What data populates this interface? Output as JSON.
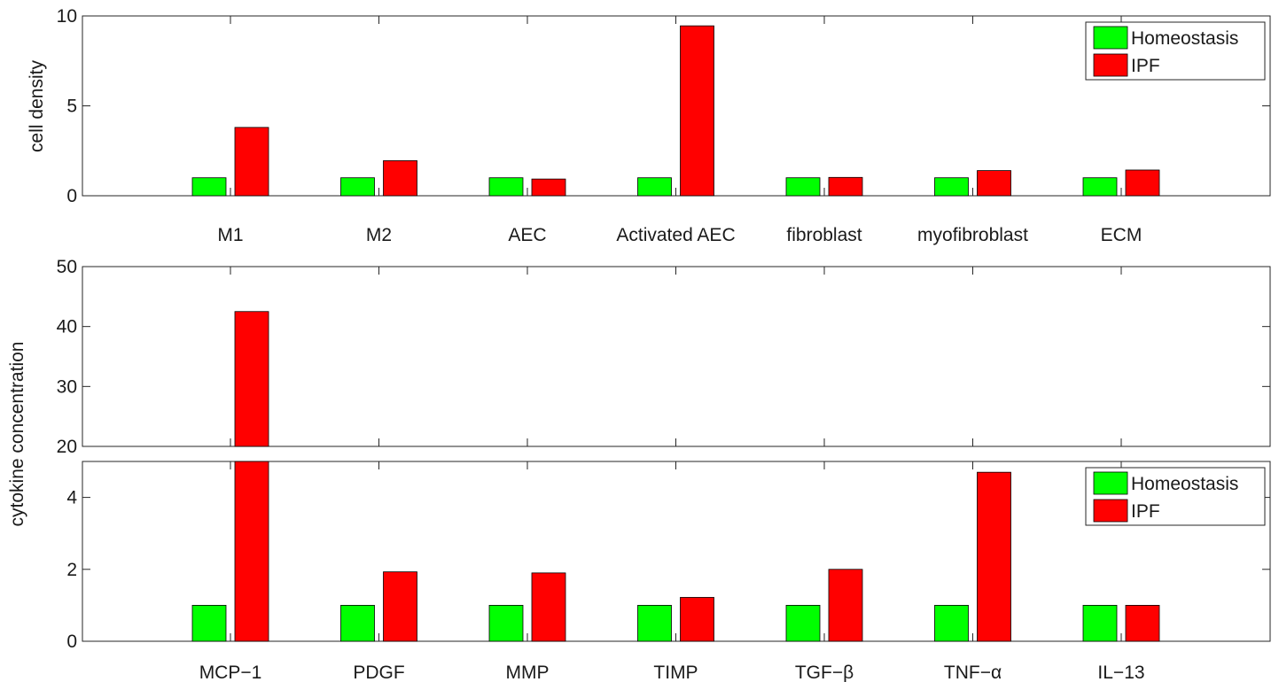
{
  "chart_data": [
    {
      "type": "bar",
      "title": "",
      "xlabel": "",
      "ylabel": "cell density",
      "ylim": [
        0,
        10
      ],
      "yticks": [
        0,
        5,
        10
      ],
      "grid": false,
      "legend_position": "top-right",
      "categories": [
        "M1",
        "M2",
        "AEC",
        "Activated AEC",
        "fibroblast",
        "myofibroblast",
        "ECM"
      ],
      "series": [
        {
          "name": "Homeostasis",
          "color": "#00ff00",
          "values": [
            1,
            1,
            1,
            1,
            1,
            1,
            1
          ]
        },
        {
          "name": "IPF",
          "color": "#ff0000",
          "values": [
            3.8,
            1.95,
            0.93,
            9.45,
            1.02,
            1.4,
            1.43
          ]
        }
      ]
    },
    {
      "type": "bar",
      "title": "",
      "xlabel": "",
      "ylabel": "cytokine concentration",
      "ylim": [
        0,
        50
      ],
      "axis_break": [
        5,
        20
      ],
      "yticks_lower": [
        0,
        2,
        4
      ],
      "yticks_upper": [
        20,
        30,
        40,
        50
      ],
      "grid": false,
      "legend_position": "top-right",
      "categories": [
        "MCP−1",
        "PDGF",
        "MMP",
        "TIMP",
        "TGF−β",
        "TNF−α",
        "IL−13"
      ],
      "series": [
        {
          "name": "Homeostasis",
          "color": "#00ff00",
          "values": [
            1,
            1,
            1,
            1,
            1,
            1,
            1
          ]
        },
        {
          "name": "IPF",
          "color": "#ff0000",
          "values": [
            42.5,
            1.93,
            1.9,
            1.22,
            2.0,
            4.7,
            1.0
          ]
        }
      ]
    }
  ]
}
